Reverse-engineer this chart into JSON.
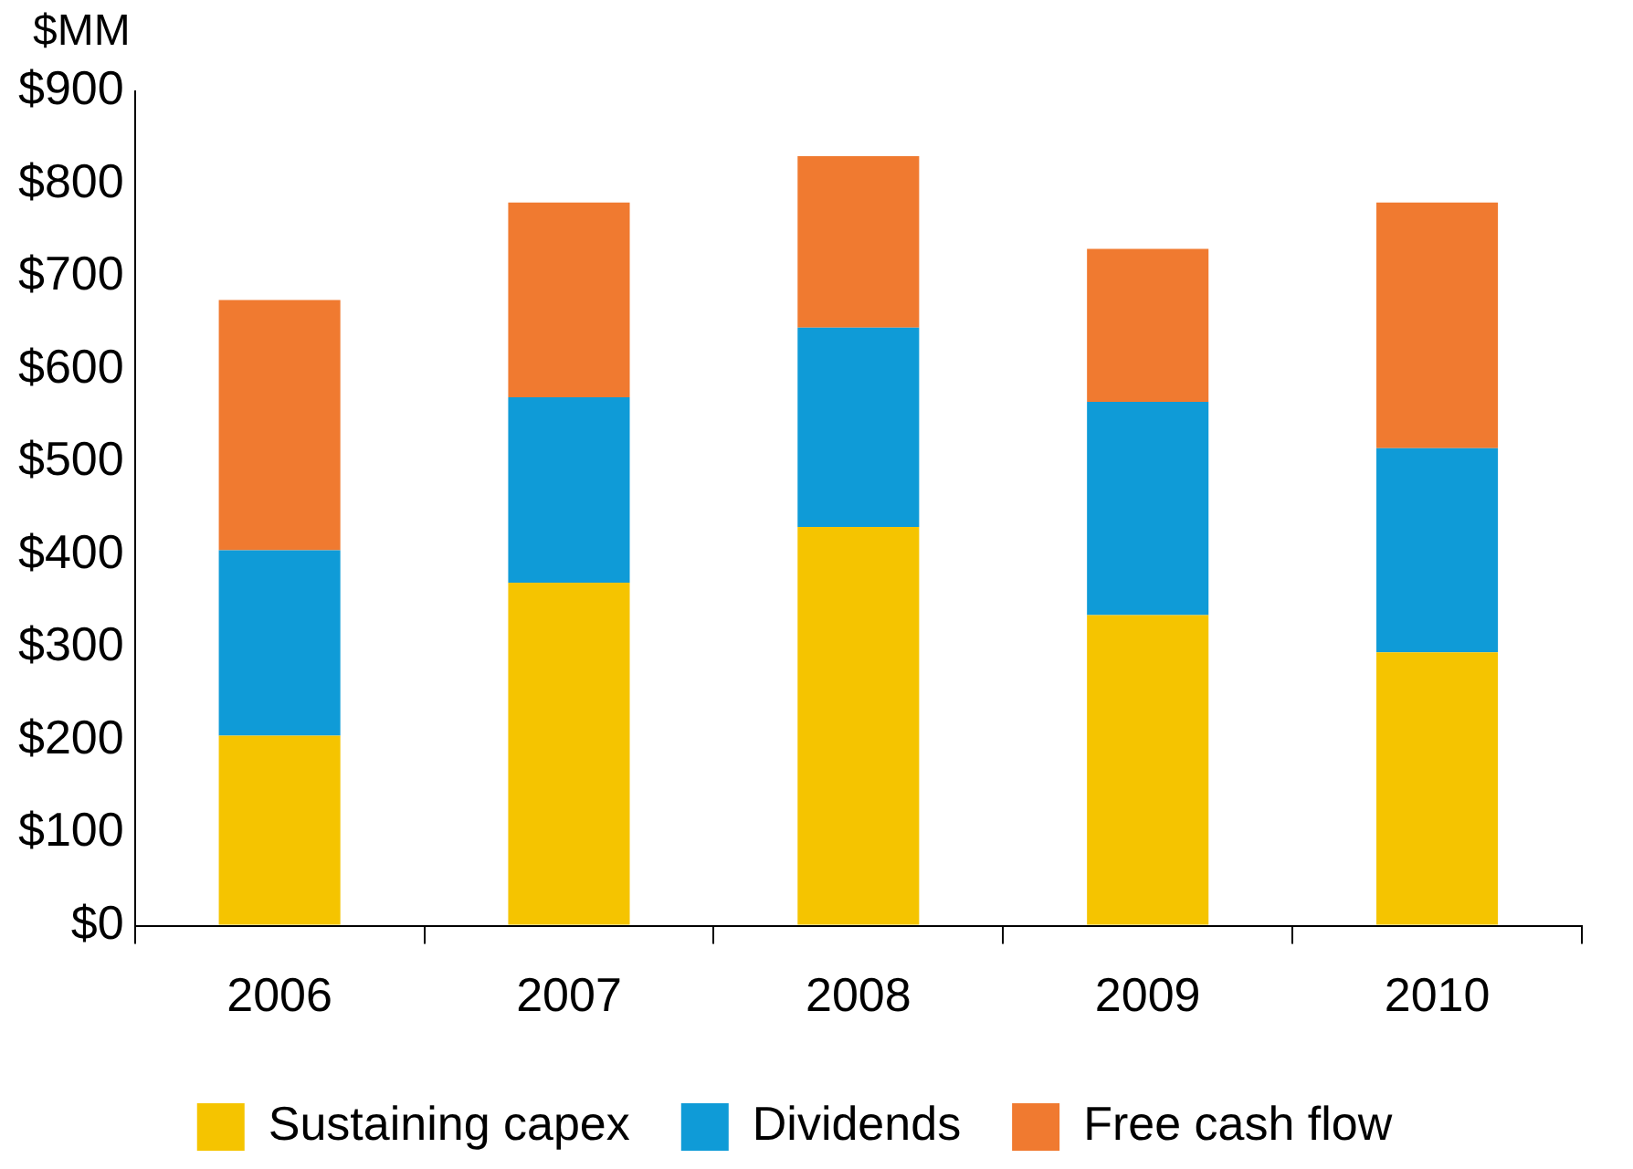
{
  "chart_data": {
    "type": "bar",
    "stacked": true,
    "ylabel": "$MM",
    "categories": [
      "2006",
      "2007",
      "2008",
      "2009",
      "2010"
    ],
    "series": [
      {
        "name": "Sustaining capex",
        "color": "#f5c400",
        "values": [
          205,
          370,
          430,
          335,
          295
        ]
      },
      {
        "name": "Dividends",
        "color": "#0f9bd7",
        "values": [
          200,
          200,
          215,
          230,
          220
        ]
      },
      {
        "name": "Free cash flow",
        "color": "#f07a30",
        "values": [
          270,
          210,
          185,
          165,
          265
        ]
      }
    ],
    "ylim": [
      0,
      900
    ],
    "yticks": [
      {
        "value": 0,
        "label": "$0"
      },
      {
        "value": 100,
        "label": "$100"
      },
      {
        "value": 200,
        "label": "$200"
      },
      {
        "value": 300,
        "label": "$300"
      },
      {
        "value": 400,
        "label": "$400"
      },
      {
        "value": 500,
        "label": "$500"
      },
      {
        "value": 600,
        "label": "$600"
      },
      {
        "value": 700,
        "label": "$700"
      },
      {
        "value": 800,
        "label": "$800"
      },
      {
        "value": 900,
        "label": "$900"
      }
    ],
    "grid": false,
    "legend": "bottom"
  }
}
